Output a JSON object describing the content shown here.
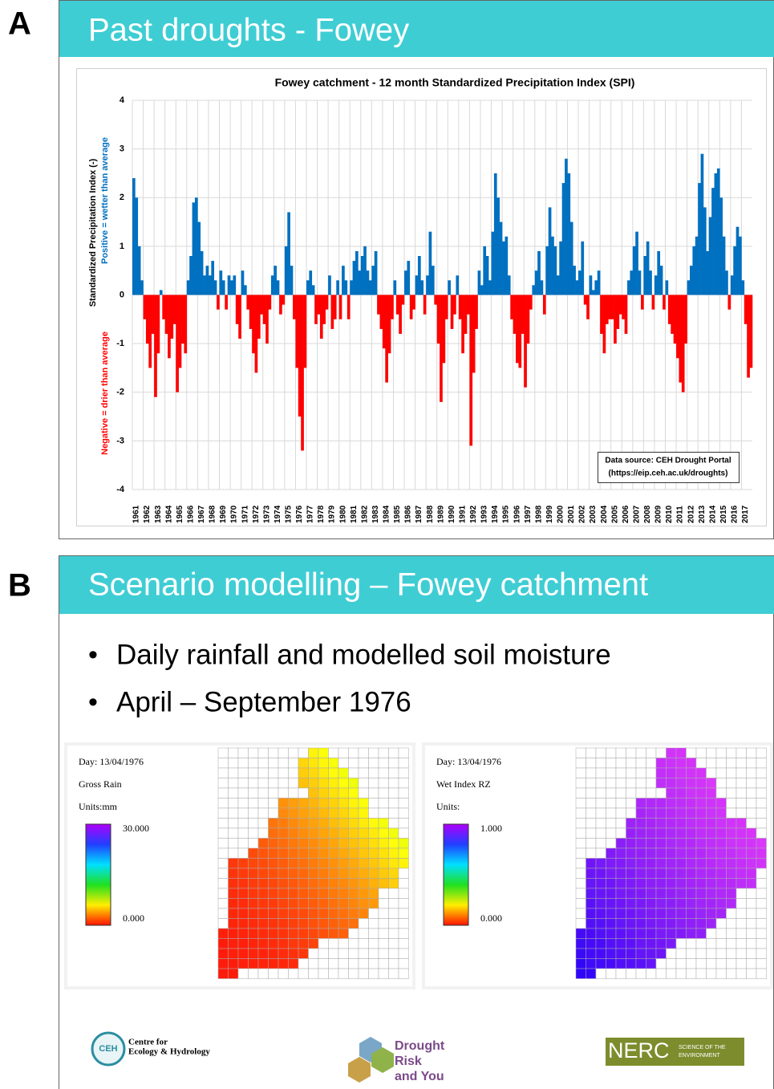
{
  "panel_a": {
    "label": "A",
    "header": "Past droughts - Fowey"
  },
  "chart_data": {
    "type": "bar",
    "title": "Fowey catchment - 12 month Standardized Precipitation Index (SPI)",
    "y_label": "Standardized Precipitation Index (-)",
    "positive_label": "Positive = wetter than average",
    "negative_label": "Negative = drier than average",
    "source": [
      "Data source: CEH Drought Portal",
      "(https://eip.ceh.ac.uk/droughts)"
    ],
    "colors": {
      "positive": "#0070c0",
      "negative": "#ff0000"
    },
    "grid": true,
    "xlim": [
      1961,
      2018
    ],
    "xticks": [
      1961,
      1962,
      1963,
      1964,
      1965,
      1966,
      1967,
      1968,
      1969,
      1970,
      1971,
      1972,
      1973,
      1974,
      1975,
      1976,
      1977,
      1978,
      1979,
      1980,
      1981,
      1982,
      1983,
      1984,
      1985,
      1986,
      1987,
      1988,
      1989,
      1990,
      1991,
      1992,
      1993,
      1994,
      1995,
      1996,
      1997,
      1998,
      1999,
      2000,
      2001,
      2002,
      2003,
      2004,
      2005,
      2006,
      2007,
      2008,
      2009,
      2010,
      2011,
      2012,
      2013,
      2014,
      2015,
      2016,
      2017
    ],
    "ylim": [
      -4,
      4
    ],
    "yticks": [
      -4,
      -3,
      -2,
      -1,
      0,
      1,
      2,
      3,
      4
    ],
    "x": [
      1961,
      1961.25,
      1961.5,
      1961.75,
      1962,
      1962.25,
      1962.5,
      1962.75,
      1963,
      1963.25,
      1963.5,
      1963.75,
      1964,
      1964.25,
      1964.5,
      1964.75,
      1965,
      1965.25,
      1965.5,
      1965.75,
      1966,
      1966.25,
      1966.5,
      1966.75,
      1967,
      1967.25,
      1967.5,
      1967.75,
      1968,
      1968.25,
      1968.5,
      1968.75,
      1969,
      1969.25,
      1969.5,
      1969.75,
      1970,
      1970.25,
      1970.5,
      1970.75,
      1971,
      1971.25,
      1971.5,
      1971.75,
      1972,
      1972.25,
      1972.5,
      1972.75,
      1973,
      1973.25,
      1973.5,
      1973.75,
      1974,
      1974.25,
      1974.5,
      1974.75,
      1975,
      1975.25,
      1975.5,
      1975.75,
      1976,
      1976.25,
      1976.5,
      1976.75,
      1977,
      1977.25,
      1977.5,
      1977.75,
      1978,
      1978.25,
      1978.5,
      1978.75,
      1979,
      1979.25,
      1979.5,
      1979.75,
      1980,
      1980.25,
      1980.5,
      1980.75,
      1981,
      1981.25,
      1981.5,
      1981.75,
      1982,
      1982.25,
      1982.5,
      1982.75,
      1983,
      1983.25,
      1983.5,
      1983.75,
      1984,
      1984.25,
      1984.5,
      1984.75,
      1985,
      1985.25,
      1985.5,
      1985.75,
      1986,
      1986.25,
      1986.5,
      1986.75,
      1987,
      1987.25,
      1987.5,
      1987.75,
      1988,
      1988.25,
      1988.5,
      1988.75,
      1989,
      1989.25,
      1989.5,
      1989.75,
      1990,
      1990.25,
      1990.5,
      1990.75,
      1991,
      1991.25,
      1991.5,
      1991.75,
      1992,
      1992.25,
      1992.5,
      1992.75,
      1993,
      1993.25,
      1993.5,
      1993.75,
      1994,
      1994.25,
      1994.5,
      1994.75,
      1995,
      1995.25,
      1995.5,
      1995.75,
      1996,
      1996.25,
      1996.5,
      1996.75,
      1997,
      1997.25,
      1997.5,
      1997.75,
      1998,
      1998.25,
      1998.5,
      1998.75,
      1999,
      1999.25,
      1999.5,
      1999.75,
      2000,
      2000.25,
      2000.5,
      2000.75,
      2001,
      2001.25,
      2001.5,
      2001.75,
      2002,
      2002.25,
      2002.5,
      2002.75,
      2003,
      2003.25,
      2003.5,
      2003.75,
      2004,
      2004.25,
      2004.5,
      2004.75,
      2005,
      2005.25,
      2005.5,
      2005.75,
      2006,
      2006.25,
      2006.5,
      2006.75,
      2007,
      2007.25,
      2007.5,
      2007.75,
      2008,
      2008.25,
      2008.5,
      2008.75,
      2009,
      2009.25,
      2009.5,
      2009.75,
      2010,
      2010.25,
      2010.5,
      2010.75,
      2011,
      2011.25,
      2011.5,
      2011.75,
      2012,
      2012.25,
      2012.5,
      2012.75,
      2013,
      2013.25,
      2013.5,
      2013.75,
      2014,
      2014.25,
      2014.5,
      2014.75,
      2015,
      2015.25,
      2015.5,
      2015.75,
      2016,
      2016.25,
      2016.5,
      2016.75,
      2017,
      2017.25,
      2017.5,
      2017.75
    ],
    "values": [
      2.4,
      2.0,
      1.0,
      0.3,
      -0.5,
      -1.0,
      -1.5,
      -0.8,
      -2.1,
      -1.2,
      0.1,
      -0.5,
      -0.8,
      -1.3,
      -0.9,
      -0.6,
      -2.0,
      -1.5,
      -1.0,
      -1.2,
      0.3,
      0.8,
      1.9,
      2.0,
      1.5,
      0.9,
      0.4,
      0.6,
      0.4,
      0.7,
      0.3,
      -0.3,
      0.5,
      0.3,
      -0.3,
      0.4,
      0.3,
      0.4,
      -0.6,
      -0.9,
      0.5,
      0.2,
      -0.3,
      -0.7,
      -1.2,
      -1.6,
      -0.9,
      -0.4,
      -0.6,
      -1.0,
      -0.3,
      0.4,
      0.6,
      0.3,
      -0.4,
      -0.2,
      1.0,
      1.7,
      0.6,
      -0.5,
      -1.5,
      -2.5,
      -3.2,
      -1.5,
      0.3,
      0.5,
      0.2,
      -0.6,
      -0.4,
      -0.9,
      -0.6,
      -0.3,
      0.4,
      -0.7,
      -0.5,
      0.3,
      -0.5,
      0.6,
      0.3,
      -0.5,
      0.3,
      0.7,
      0.9,
      0.5,
      0.8,
      1.0,
      0.5,
      0.3,
      0.6,
      0.9,
      -0.4,
      -0.7,
      -1.1,
      -1.8,
      -1.2,
      -0.5,
      0.3,
      -0.4,
      -0.8,
      -0.2,
      0.5,
      0.7,
      -0.5,
      -0.3,
      0.4,
      0.8,
      0.3,
      -0.4,
      0.4,
      1.3,
      0.6,
      -0.2,
      -1.0,
      -2.2,
      -1.4,
      -0.5,
      0.3,
      -0.7,
      -0.4,
      0.4,
      -0.5,
      -1.2,
      -0.8,
      -0.4,
      -3.1,
      -1.6,
      -0.7,
      0.5,
      0.2,
      1.0,
      0.8,
      0.3,
      1.3,
      2.5,
      2.0,
      1.5,
      1.1,
      1.2,
      0.4,
      -0.5,
      -0.8,
      -1.4,
      -1.5,
      -0.8,
      -1.9,
      -1.0,
      -0.3,
      0.2,
      0.5,
      0.9,
      0.3,
      -0.4,
      1.0,
      1.8,
      1.2,
      1.0,
      0.4,
      1.1,
      2.3,
      2.8,
      2.5,
      1.5,
      0.6,
      0.3,
      0.5,
      1.1,
      -0.2,
      -0.5,
      0.4,
      0.1,
      0.3,
      0.5,
      -0.8,
      -1.2,
      -0.6,
      -0.5,
      -0.5,
      -1.0,
      -0.7,
      -0.4,
      -0.5,
      -0.8,
      0.3,
      0.5,
      1.0,
      1.3,
      0.5,
      -0.3,
      0.8,
      1.1,
      0.5,
      -0.3,
      0.4,
      0.9,
      0.6,
      -0.3,
      0.3,
      -0.6,
      -0.8,
      -1.0,
      -1.3,
      -1.8,
      -2.0,
      -1.0,
      0.3,
      0.6,
      1.0,
      1.2,
      2.3,
      2.9,
      1.8,
      0.9,
      1.6,
      2.2,
      2.5,
      2.6,
      2.0,
      1.2,
      0.5,
      -0.3,
      0.4,
      1.0,
      1.4,
      1.2,
      0.3,
      -0.6,
      -1.7,
      -1.5
    ]
  },
  "panel_b": {
    "label": "B",
    "header": "Scenario modelling – Fowey catchment",
    "bullets": [
      "Daily rainfall and modelled soil moisture",
      "April – September 1976"
    ],
    "maps": [
      {
        "day": "Day:  13/04/1976",
        "variable": "Gross Rain",
        "units": "Units:mm",
        "max": "30.000",
        "min": "0.000"
      },
      {
        "day": "Day:  13/04/1976",
        "variable": "Wet Index RZ",
        "units": "Units:",
        "max": "1.000",
        "min": "0.000"
      }
    ]
  },
  "logos": {
    "ceh": [
      "Centre for",
      "Ecology & Hydrology"
    ],
    "ceh_mark": "CEH",
    "drought": [
      "Drought",
      "Risk",
      "and You"
    ],
    "nerc": "NERC",
    "nerc_tag": [
      "SCIENCE OF THE",
      "ENVIRONMENT"
    ]
  }
}
